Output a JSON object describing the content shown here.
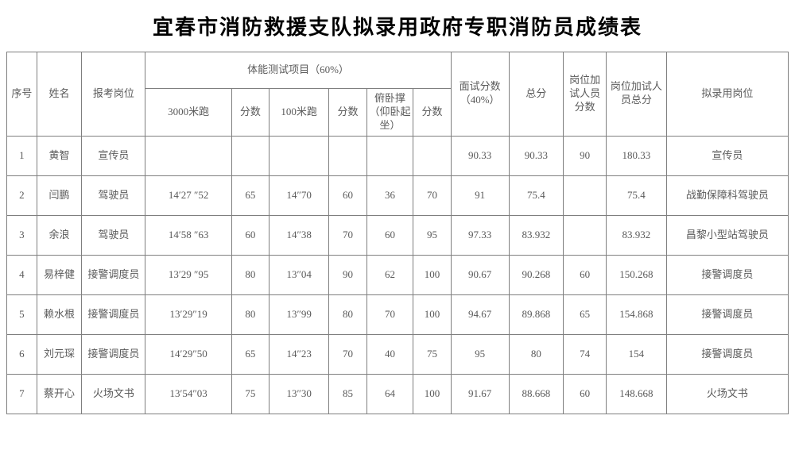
{
  "title": "宜春市消防救援支队拟录用政府专职消防员成绩表",
  "colors": {
    "border": "#7f7f7f",
    "text": "#5a5a5a",
    "title": "#000000",
    "background": "#ffffff"
  },
  "table": {
    "header": {
      "seq": "序号",
      "name": "姓名",
      "apply_pos": "报考岗位",
      "physical_group": "体能测试项目（60%）",
      "run3000": "3000米跑",
      "score1": "分数",
      "run100": "100米跑",
      "score2": "分数",
      "pushup": "俯卧撑（仰卧起坐）",
      "score3": "分数",
      "interview": "面试分数（40%）",
      "total": "总分",
      "extra_score": "岗位加试人员分数",
      "extra_total": "岗位加试人员总分",
      "recruit_pos": "拟录用岗位"
    },
    "rows": [
      {
        "seq": "1",
        "name": "黄智",
        "apply_pos": "宣传员",
        "run3000": "",
        "s1": "",
        "run100": "",
        "s2": "",
        "pushup": "",
        "s3": "",
        "interview": "90.33",
        "total": "90.33",
        "extra_score": "90",
        "extra_total": "180.33",
        "recruit_pos": "宣传员"
      },
      {
        "seq": "2",
        "name": "闫鹏",
        "apply_pos": "驾驶员",
        "run3000": "14′27 ″52",
        "s1": "65",
        "run100": "14″70",
        "s2": "60",
        "pushup": "36",
        "s3": "70",
        "interview": "91",
        "total": "75.4",
        "extra_score": "",
        "extra_total": "75.4",
        "recruit_pos": "战勤保障科驾驶员"
      },
      {
        "seq": "3",
        "name": "余浪",
        "apply_pos": "驾驶员",
        "run3000": "14′58 ″63",
        "s1": "60",
        "run100": "14″38",
        "s2": "70",
        "pushup": "60",
        "s3": "95",
        "interview": "97.33",
        "total": "83.932",
        "extra_score": "",
        "extra_total": "83.932",
        "recruit_pos": "昌黎小型站驾驶员"
      },
      {
        "seq": "4",
        "name": "易梓健",
        "apply_pos": "接警调度员",
        "run3000": "13′29 ″95",
        "s1": "80",
        "run100": "13″04",
        "s2": "90",
        "pushup": "62",
        "s3": "100",
        "interview": "90.67",
        "total": "90.268",
        "extra_score": "60",
        "extra_total": "150.268",
        "recruit_pos": "接警调度员"
      },
      {
        "seq": "5",
        "name": "赖水根",
        "apply_pos": "接警调度员",
        "run3000": "13′29″19",
        "s1": "80",
        "run100": "13″99",
        "s2": "80",
        "pushup": "70",
        "s3": "100",
        "interview": "94.67",
        "total": "89.868",
        "extra_score": "65",
        "extra_total": "154.868",
        "recruit_pos": "接警调度员"
      },
      {
        "seq": "6",
        "name": "刘元琛",
        "apply_pos": "接警调度员",
        "run3000": "14′29″50",
        "s1": "65",
        "run100": "14″23",
        "s2": "70",
        "pushup": "40",
        "s3": "75",
        "interview": "95",
        "total": "80",
        "extra_score": "74",
        "extra_total": "154",
        "recruit_pos": "接警调度员"
      },
      {
        "seq": "7",
        "name": "蔡开心",
        "apply_pos": "火场文书",
        "run3000": "13′54″03",
        "s1": "75",
        "run100": "13″30",
        "s2": "85",
        "pushup": "64",
        "s3": "100",
        "interview": "91.67",
        "total": "88.668",
        "extra_score": "60",
        "extra_total": "148.668",
        "recruit_pos": "火场文书"
      }
    ]
  }
}
